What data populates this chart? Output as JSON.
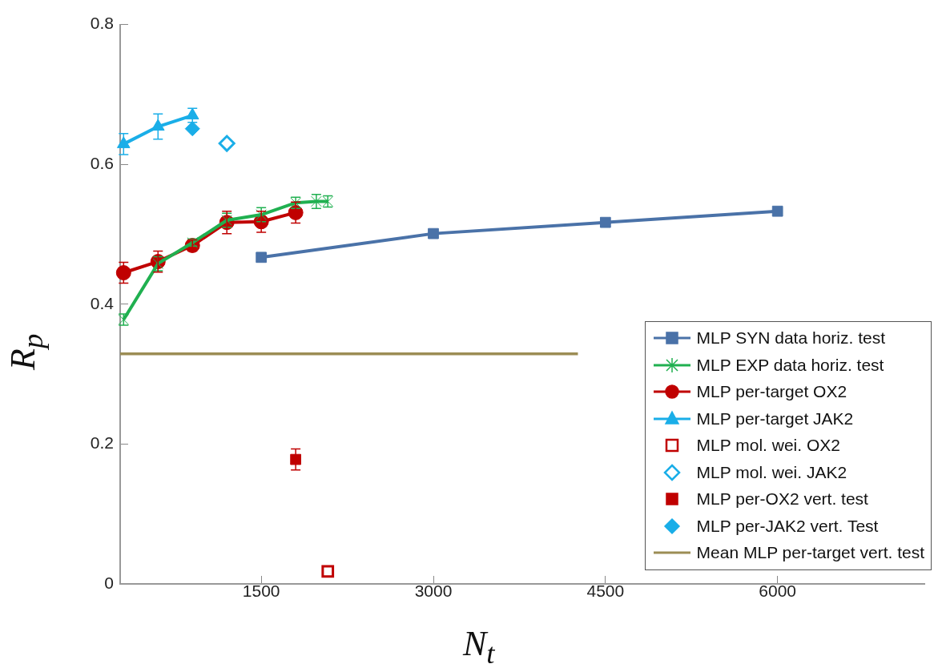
{
  "chart_data": {
    "type": "line",
    "xlabel": "N$_{t}$",
    "ylabel": "R$_{p}$",
    "xlim": [
      270,
      7280
    ],
    "xticks": [
      1500,
      3000,
      4500,
      6000
    ],
    "ylim": [
      0,
      0.8
    ],
    "yticks": [
      0,
      0.2,
      0.4,
      0.6,
      0.8
    ],
    "grid": false,
    "legend": "bottom right",
    "series": [
      {
        "name": "MLP SYN data horiz. test",
        "marker": "square",
        "color": "#4a72a8",
        "x": [
          1500,
          3000,
          4500,
          6000
        ],
        "values": [
          0.467,
          0.501,
          0.517,
          0.533
        ]
      },
      {
        "name": "MLP EXP data horiz. test",
        "marker": "cross",
        "color": "#20b050",
        "x": [
          300,
          600,
          900,
          1200,
          1500,
          1800,
          1980,
          2080
        ],
        "values": [
          0.378,
          0.458,
          0.488,
          0.52,
          0.528,
          0.545,
          0.547,
          0.547
        ],
        "errors": [
          0.008,
          0.01,
          0.005,
          0.01,
          0.01,
          0.008,
          0.01,
          0.008
        ]
      },
      {
        "name": "MLP per-target OX2",
        "marker": "circle",
        "color": "#c00000",
        "x": [
          300,
          600,
          900,
          1200,
          1500,
          1800
        ],
        "values": [
          0.445,
          0.461,
          0.484,
          0.517,
          0.518,
          0.531
        ],
        "errors": [
          0.015,
          0.015,
          0.008,
          0.016,
          0.015,
          0.015
        ]
      },
      {
        "name": "MLP per-target JAK2",
        "marker": "triangle",
        "color": "#1aaee8",
        "x": [
          300,
          600,
          900
        ],
        "values": [
          0.629,
          0.654,
          0.67
        ],
        "errors": [
          0.015,
          0.018,
          0.01
        ]
      },
      {
        "name": "MLP mol. wei. OX2",
        "type": "scatter",
        "marker": "square-open",
        "color": "#c00000",
        "x": [
          2080
        ],
        "values": [
          0.018
        ]
      },
      {
        "name": "MLP mol. wei. JAK2",
        "type": "scatter",
        "marker": "diamond-open",
        "color": "#1aaee8",
        "x": [
          1200
        ],
        "values": [
          0.63
        ]
      },
      {
        "name": "MLP per-OX2 vert. test",
        "type": "scatter",
        "marker": "square",
        "color": "#c00000",
        "x": [
          1800
        ],
        "values": [
          0.178
        ],
        "errors": [
          0.015
        ]
      },
      {
        "name": "MLP per-JAK2 vert. Test",
        "type": "scatter",
        "marker": "diamond",
        "color": "#1aaee8",
        "x": [
          900
        ],
        "values": [
          0.651
        ]
      },
      {
        "name": "Mean MLP per-target vert. test",
        "marker": "none",
        "color": "#9c8d55",
        "x": [
          270,
          4260
        ],
        "values": [
          0.329,
          0.329
        ]
      }
    ]
  }
}
